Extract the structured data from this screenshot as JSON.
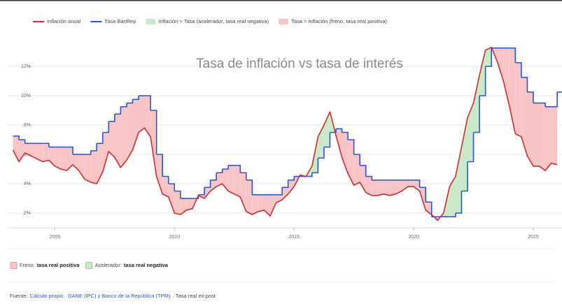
{
  "chart_data": {
    "type": "line",
    "title": "Tasa de inflación vs tasa de interés",
    "x": [
      2003.25,
      2003.5,
      2003.75,
      2004.0,
      2004.25,
      2004.5,
      2004.75,
      2005.0,
      2005.25,
      2005.5,
      2005.75,
      2006.0,
      2006.25,
      2006.5,
      2006.75,
      2007.0,
      2007.25,
      2007.5,
      2007.75,
      2008.0,
      2008.25,
      2008.5,
      2008.75,
      2009.0,
      2009.25,
      2009.5,
      2009.75,
      2010.0,
      2010.25,
      2010.5,
      2010.75,
      2011.0,
      2011.25,
      2011.5,
      2011.75,
      2012.0,
      2012.25,
      2012.5,
      2012.75,
      2013.0,
      2013.25,
      2013.5,
      2013.75,
      2014.0,
      2014.25,
      2014.5,
      2014.75,
      2015.0,
      2015.25,
      2015.5,
      2015.75,
      2016.0,
      2016.25,
      2016.5,
      2016.75,
      2017.0,
      2017.25,
      2017.5,
      2017.75,
      2018.0,
      2018.25,
      2018.5,
      2018.75,
      2019.0,
      2019.25,
      2019.5,
      2019.75,
      2020.0,
      2020.25,
      2020.5,
      2020.75,
      2021.0,
      2021.25,
      2021.5,
      2021.75,
      2022.0,
      2022.25,
      2022.5,
      2022.75,
      2023.0,
      2023.25,
      2023.5,
      2023.75,
      2024.0,
      2024.25,
      2024.5,
      2024.75,
      2025.0,
      2025.25,
      2025.5,
      2025.75,
      2026.0
    ],
    "series": [
      {
        "name": "Inflación anual",
        "color": "#d02b2b",
        "values": [
          6.3,
          5.5,
          6.1,
          5.9,
          5.7,
          5.5,
          5.6,
          5.2,
          5.0,
          4.9,
          5.3,
          4.9,
          4.3,
          4.1,
          4.0,
          4.8,
          6.2,
          5.8,
          5.1,
          5.6,
          6.3,
          7.5,
          7.8,
          7.2,
          4.5,
          3.3,
          3.1,
          2.0,
          1.9,
          2.2,
          2.3,
          3.2,
          3.0,
          3.5,
          3.8,
          4.0,
          3.5,
          3.3,
          3.1,
          2.1,
          1.9,
          2.1,
          2.2,
          1.8,
          2.7,
          2.9,
          3.3,
          3.8,
          4.6,
          4.5,
          5.2,
          7.2,
          8.0,
          8.9,
          7.3,
          5.8,
          4.7,
          3.9,
          4.1,
          3.4,
          3.2,
          3.2,
          3.3,
          3.2,
          3.3,
          3.5,
          3.8,
          3.8,
          3.5,
          2.2,
          1.9,
          1.5,
          2.0,
          3.8,
          4.5,
          6.5,
          8.5,
          9.5,
          11.4,
          13.1,
          13.3,
          12.3,
          11.0,
          9.3,
          7.4,
          7.2,
          5.9,
          5.2,
          5.2,
          4.9,
          5.4,
          5.3
        ]
      },
      {
        "name": "Tasa BanRep",
        "color": "#2456d6",
        "step": true,
        "values": [
          7.25,
          7.0,
          6.75,
          6.75,
          6.75,
          6.75,
          6.5,
          6.5,
          6.5,
          6.5,
          6.0,
          6.0,
          6.0,
          6.25,
          6.75,
          7.5,
          8.25,
          8.75,
          9.25,
          9.5,
          9.75,
          10.0,
          10.0,
          9.0,
          6.0,
          4.5,
          4.0,
          3.5,
          3.0,
          3.0,
          3.0,
          3.25,
          3.75,
          4.25,
          4.75,
          5.0,
          5.25,
          5.25,
          4.75,
          4.25,
          3.25,
          3.25,
          3.25,
          3.25,
          3.25,
          3.75,
          4.25,
          4.5,
          4.5,
          4.5,
          4.75,
          5.75,
          6.5,
          7.5,
          7.75,
          7.5,
          7.0,
          6.0,
          5.25,
          4.5,
          4.25,
          4.25,
          4.25,
          4.25,
          4.25,
          4.25,
          4.25,
          4.25,
          3.75,
          2.75,
          1.75,
          1.75,
          1.75,
          1.75,
          2.0,
          3.5,
          5.5,
          7.5,
          10.0,
          12.0,
          13.25,
          13.25,
          13.25,
          13.25,
          12.25,
          11.25,
          10.25,
          9.5,
          9.5,
          9.25,
          9.25,
          10.25
        ]
      }
    ],
    "fills": [
      {
        "name": "Inflación > Tasa (acelerador, tasa real negativa)",
        "color": "#c8eac8"
      },
      {
        "name": "Tasa > Inflación (freno, tasa real positiva)",
        "color": "#f7c5c5"
      }
    ],
    "xlim": [
      2003.0,
      2026.2
    ],
    "xticks": [
      2005,
      2010,
      2015,
      2020,
      2025
    ],
    "ylim": [
      1,
      14
    ],
    "yticks": [
      {
        "value": 2,
        "label": "2%"
      },
      {
        "value": 4,
        "label": "4%"
      },
      {
        "value": 6,
        "label": "6%"
      },
      {
        "value": 8,
        "label": "8%"
      },
      {
        "value": 10,
        "label": "10%"
      },
      {
        "value": 12,
        "label": "12%"
      }
    ],
    "grid": true,
    "key": [
      {
        "label": "Freno:",
        "bold": "tasa real positiva"
      },
      {
        "label": "Acelerador:",
        "bold": "tasa real negativa"
      }
    ],
    "source": {
      "label": "Fuente:",
      "link": "Cálculo propio · DANE (IPC) y Banco de la República (TPM)",
      "note": "· Tasa real ex-post"
    }
  }
}
